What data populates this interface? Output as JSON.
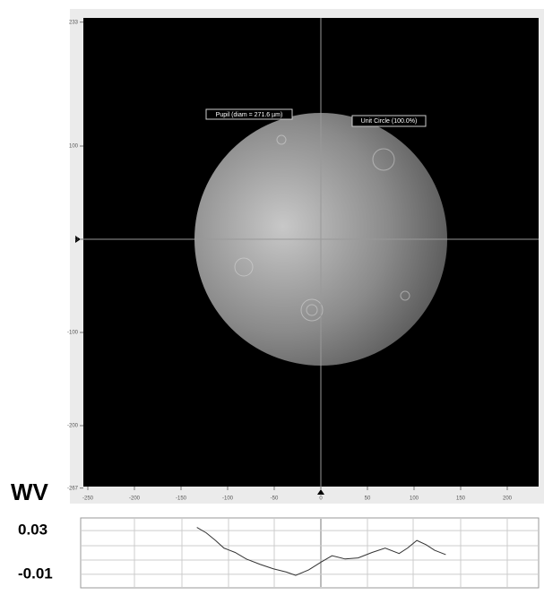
{
  "image_view": {
    "xlim": [
      -250,
      233
    ],
    "ylim": [
      -267,
      233
    ],
    "xticks": [
      -250,
      -200,
      -150,
      -100,
      -50,
      0,
      50,
      100,
      150,
      200
    ],
    "yticks": [
      233,
      100,
      0,
      -100,
      -200,
      -267
    ],
    "annotations": [
      "Pupil (diam = 271.6 µm)",
      "Unit Circle (100.0%)"
    ]
  },
  "chart_data": {
    "type": "line",
    "title": "WV",
    "x": [
      -133,
      -123,
      -113,
      -104,
      -92,
      -80,
      -65,
      -51,
      -37,
      -27,
      -13,
      0,
      12,
      26,
      40,
      55,
      69,
      84,
      93,
      103,
      113,
      122,
      134
    ],
    "values": [
      0.033,
      0.028,
      0.021,
      0.014,
      0.01,
      0.004,
      -0.001,
      -0.005,
      -0.008,
      -0.011,
      -0.006,
      0.001,
      0.007,
      0.004,
      0.005,
      0.01,
      0.014,
      0.009,
      0.014,
      0.021,
      0.017,
      0.012,
      0.008
    ],
    "color": "#333333",
    "ylim": [
      -0.02,
      0.04
    ],
    "yticks": [
      0.03,
      -0.01
    ]
  }
}
